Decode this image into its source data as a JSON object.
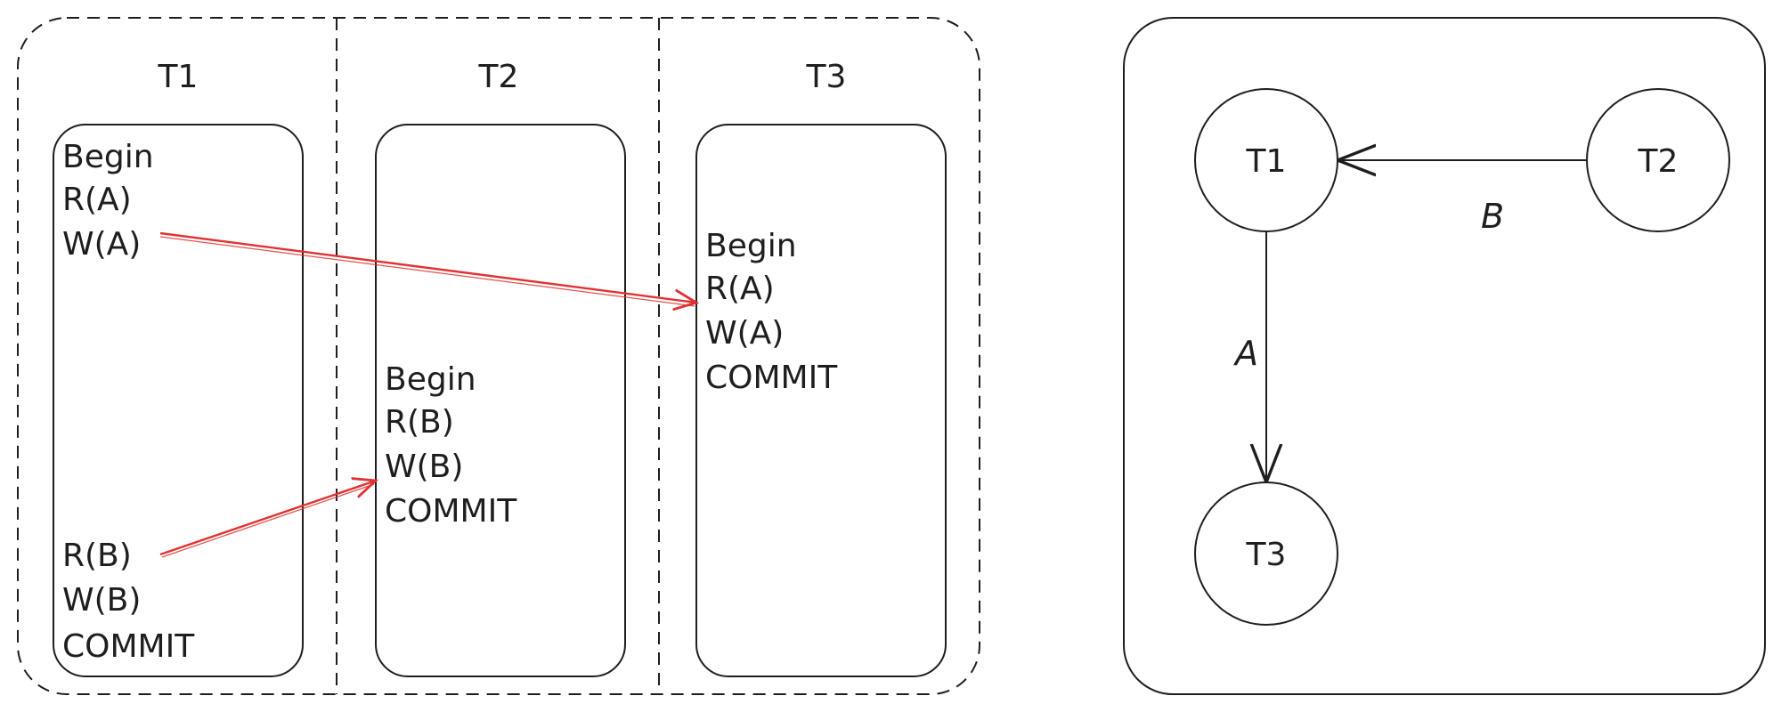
{
  "schedule": {
    "columns": [
      {
        "title": "T1"
      },
      {
        "title": "T2"
      },
      {
        "title": "T3"
      }
    ],
    "t1_ops": [
      "Begin",
      "R(A)",
      "W(A)",
      "R(B)",
      "W(B)",
      "COMMIT"
    ],
    "t2_ops": [
      "Begin",
      "R(B)",
      "W(B)",
      "COMMIT"
    ],
    "t3_ops": [
      "Begin",
      "R(A)",
      "W(A)",
      "COMMIT"
    ]
  },
  "graph": {
    "nodes": [
      {
        "id": "T1",
        "label": "T1"
      },
      {
        "id": "T2",
        "label": "T2"
      },
      {
        "id": "T3",
        "label": "T3"
      }
    ],
    "edges": [
      {
        "from": "T2",
        "to": "T1",
        "label": "B"
      },
      {
        "from": "T1",
        "to": "T3",
        "label": "A"
      }
    ]
  },
  "colors": {
    "stroke": "#1e1e1e",
    "dependency_arrow": "#e03131",
    "background": "#ffffff"
  }
}
